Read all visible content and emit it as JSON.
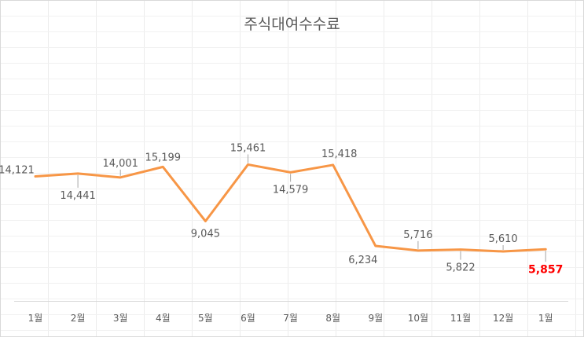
{
  "chart_data": {
    "type": "line",
    "title": "주식대여수수료",
    "categories": [
      "1월",
      "2월",
      "3월",
      "4월",
      "5월",
      "6월",
      "7월",
      "8월",
      "9월",
      "10월",
      "11월",
      "12월",
      "1월"
    ],
    "series": [
      {
        "values": [
          14121,
          14441,
          14001,
          15199,
          9045,
          15461,
          14579,
          15418,
          6234,
          5716,
          5822,
          5610,
          5857
        ],
        "labels": [
          "14,121",
          "14,441",
          "14,001",
          "15,199",
          "9,045",
          "15,461",
          "14,579",
          "15,418",
          "6,234",
          "5,716",
          "5,822",
          "5,610",
          "5,857"
        ],
        "color": "#f79646"
      }
    ],
    "highlight": {
      "index": 12,
      "color": "#ff0000"
    },
    "label_color": "#595959",
    "ylim": [
      0,
      20000
    ],
    "grid": false,
    "legend": "none"
  }
}
